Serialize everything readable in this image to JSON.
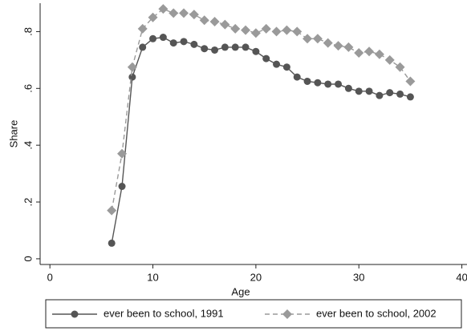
{
  "chart_data": {
    "type": "line",
    "x": [
      6,
      7,
      8,
      9,
      10,
      11,
      12,
      13,
      14,
      15,
      16,
      17,
      18,
      19,
      20,
      21,
      22,
      23,
      24,
      25,
      26,
      27,
      28,
      29,
      30,
      31,
      32,
      33,
      34,
      35
    ],
    "series": [
      {
        "name": "ever been to school, 1991",
        "color": "#555555",
        "marker": "circle",
        "line_style": "solid",
        "values": [
          0.055,
          0.255,
          0.64,
          0.745,
          0.775,
          0.78,
          0.76,
          0.765,
          0.755,
          0.74,
          0.735,
          0.745,
          0.745,
          0.745,
          0.73,
          0.705,
          0.685,
          0.675,
          0.64,
          0.625,
          0.62,
          0.615,
          0.615,
          0.6,
          0.59,
          0.59,
          0.575,
          0.585,
          0.58,
          0.57
        ]
      },
      {
        "name": "ever been to school, 2002",
        "color": "#9a9a9a",
        "marker": "diamond",
        "line_style": "dashed",
        "values": [
          0.17,
          0.37,
          0.675,
          0.81,
          0.85,
          0.88,
          0.865,
          0.865,
          0.86,
          0.84,
          0.835,
          0.825,
          0.81,
          0.805,
          0.795,
          0.81,
          0.8,
          0.805,
          0.8,
          0.775,
          0.775,
          0.76,
          0.75,
          0.745,
          0.725,
          0.73,
          0.72,
          0.7,
          0.675,
          0.625
        ]
      }
    ],
    "x_label": "Age",
    "y_label": "Share",
    "xlim": [
      -0.95,
      40.5
    ],
    "xticks": [
      0,
      10,
      20,
      30,
      40
    ],
    "ylim": [
      -0.02,
      0.9
    ],
    "yticks": [
      0,
      {
        "value": 0.2,
        "label": ".2"
      },
      {
        "value": 0.4,
        "label": ".4"
      },
      {
        "value": 0.6,
        "label": ".6"
      },
      {
        "value": 0.8,
        "label": ".8"
      }
    ],
    "grid": false
  }
}
